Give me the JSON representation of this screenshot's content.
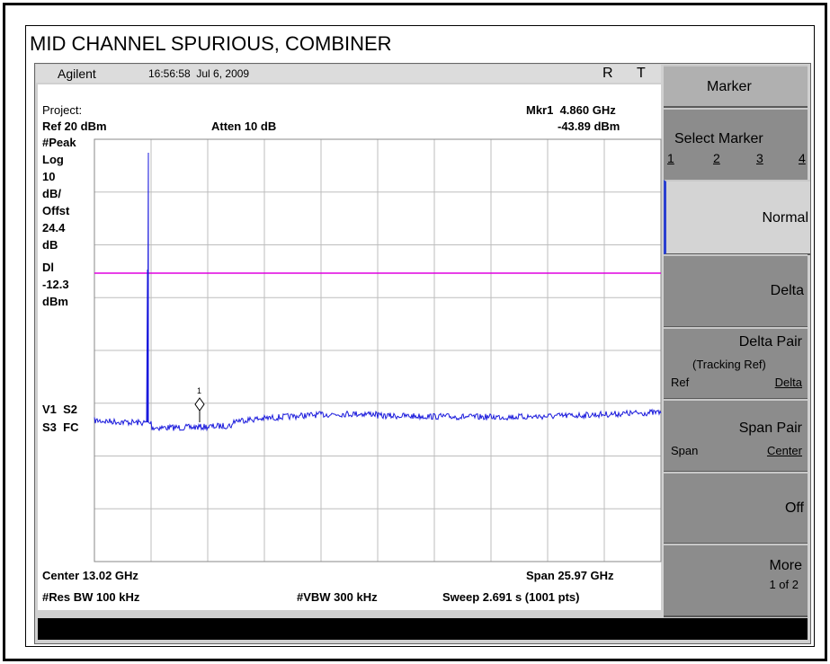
{
  "title": "MID CHANNEL SPURIOUS, COMBINER",
  "status_bar": {
    "brand": "Agilent",
    "timestamp": "16:56:58  Jul 6, 2009",
    "indicators": [
      "R",
      "T"
    ]
  },
  "readout": {
    "project": "Project:",
    "marker": "Mkr1  4.860 GHz",
    "ref": "Ref 20 dBm",
    "atten": "Atten 10 dB",
    "marker_level": "-43.89 dBm"
  },
  "left_labels": [
    "#Peak",
    "Log",
    "10",
    "dB/",
    "Offst",
    "24.4",
    "dB",
    "Dl",
    "-12.3",
    "dBm"
  ],
  "channel_labels": [
    "V1  S2",
    "S3  FC"
  ],
  "marker_label": "1",
  "footer": {
    "center": "Center 13.02 GHz",
    "span": "Span 25.97 GHz",
    "res_bw": "#Res BW 100 kHz",
    "vbw": "#VBW 300 kHz",
    "sweep": "Sweep 2.691 s (1001 pts)"
  },
  "softkeys": {
    "header": "Marker",
    "select": {
      "label": "Select Marker",
      "options": [
        "1",
        "2",
        "3",
        "4"
      ]
    },
    "normal": "Normal",
    "delta": "Delta",
    "delta_pair": {
      "label": "Delta Pair",
      "sub": "(Tracking Ref)",
      "left": "Ref",
      "right": "Delta"
    },
    "span_pair": {
      "label": "Span Pair",
      "left": "Span",
      "right": "Center"
    },
    "off": "Off",
    "more": {
      "label": "More",
      "sub": "1 of 2"
    }
  }
}
